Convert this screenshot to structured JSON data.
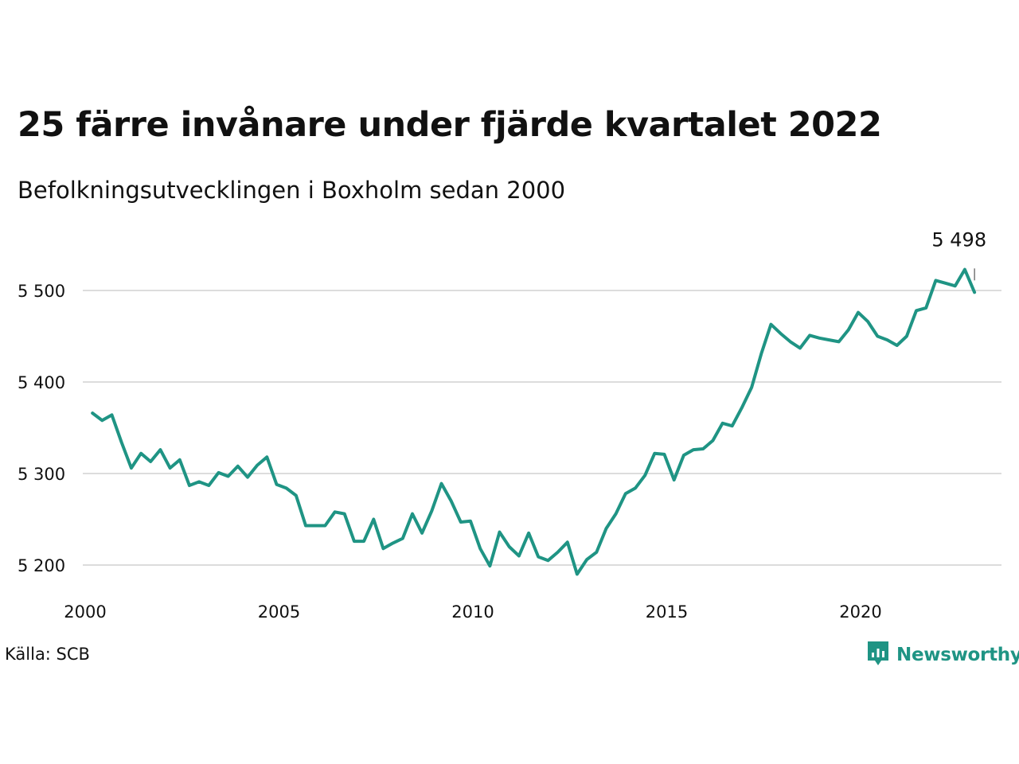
{
  "title": "25 färre invånare under fjärde kvartalet 2022",
  "subtitle": "Befolkningsutvecklingen i Boxholm sedan 2000",
  "source": "Källa: SCB",
  "logo": {
    "text": "Newsworthy",
    "icon": "newsworthy-chart-icon",
    "color": "#1f9484"
  },
  "chart_data": {
    "type": "line",
    "title": "25 färre invånare under fjärde kvartalet 2022",
    "subtitle": "Befolkningsutvecklingen i Boxholm sedan 2000",
    "xlabel": "",
    "ylabel": "",
    "xlim": [
      2000,
      2023.5
    ],
    "ylim": [
      5180,
      5560
    ],
    "x_ticks": [
      2000,
      2005,
      2010,
      2015,
      2020
    ],
    "x_tick_labels": [
      "2000",
      "2005",
      "2010",
      "2015",
      "2020"
    ],
    "y_ticks": [
      5200,
      5300,
      5400,
      5500
    ],
    "y_tick_labels": [
      "5 200",
      "5 300",
      "5 400",
      "5 500"
    ],
    "grid": "horizontal",
    "line_color": "#1f9484",
    "annotation": {
      "label": "5 498",
      "x": 2022.75,
      "y": 5498
    },
    "series": [
      {
        "x": [
          2000.0,
          2000.25,
          2000.5,
          2000.75,
          2001.0,
          2001.25,
          2001.5,
          2001.75,
          2002.0,
          2002.25,
          2002.5,
          2002.75,
          2003.0,
          2003.25,
          2003.5,
          2003.75,
          2004.0,
          2004.25,
          2004.5,
          2004.75,
          2005.0,
          2005.25,
          2005.5,
          2005.75,
          2006.0,
          2006.25,
          2006.5,
          2006.75,
          2007.0,
          2007.25,
          2007.5,
          2007.75,
          2008.0,
          2008.25,
          2008.5,
          2008.75,
          2009.0,
          2009.25,
          2009.5,
          2009.75,
          2010.0,
          2010.25,
          2010.5,
          2010.75,
          2011.0,
          2011.25,
          2011.5,
          2011.75,
          2012.0,
          2012.25,
          2012.5,
          2012.75,
          2013.0,
          2013.25,
          2013.5,
          2013.75,
          2014.0,
          2014.25,
          2014.5,
          2014.75,
          2015.0,
          2015.25,
          2015.5,
          2015.75,
          2016.0,
          2016.25,
          2016.5,
          2016.75,
          2017.0,
          2017.25,
          2017.5,
          2017.75,
          2018.0,
          2018.25,
          2018.5,
          2018.75,
          2019.0,
          2019.25,
          2019.5,
          2019.75,
          2020.0,
          2020.25,
          2020.5,
          2020.75,
          2021.0,
          2021.25,
          2021.5,
          2021.75,
          2022.0,
          2022.25,
          2022.5,
          2022.75
        ],
        "values": [
          5366,
          5358,
          5364,
          5334,
          5306,
          5322,
          5313,
          5326,
          5306,
          5315,
          5287,
          5291,
          5287,
          5301,
          5297,
          5308,
          5296,
          5309,
          5318,
          5288,
          5284,
          5276,
          5243,
          5243,
          5243,
          5258,
          5256,
          5226,
          5226,
          5250,
          5218,
          5224,
          5229,
          5256,
          5235,
          5259,
          5289,
          5270,
          5247,
          5248,
          5218,
          5199,
          5236,
          5220,
          5210,
          5235,
          5209,
          5205,
          5214,
          5225,
          5190,
          5206,
          5214,
          5240,
          5256,
          5278,
          5284,
          5298,
          5322,
          5321,
          5293,
          5320,
          5326,
          5327,
          5336,
          5355,
          5352,
          5372,
          5394,
          5431,
          5463,
          5453,
          5444,
          5437,
          5451,
          5448,
          5446,
          5444,
          5457,
          5476,
          5466,
          5450,
          5446,
          5440,
          5450,
          5478,
          5481,
          5511,
          5508,
          5505,
          5523,
          5498
        ]
      }
    ]
  }
}
